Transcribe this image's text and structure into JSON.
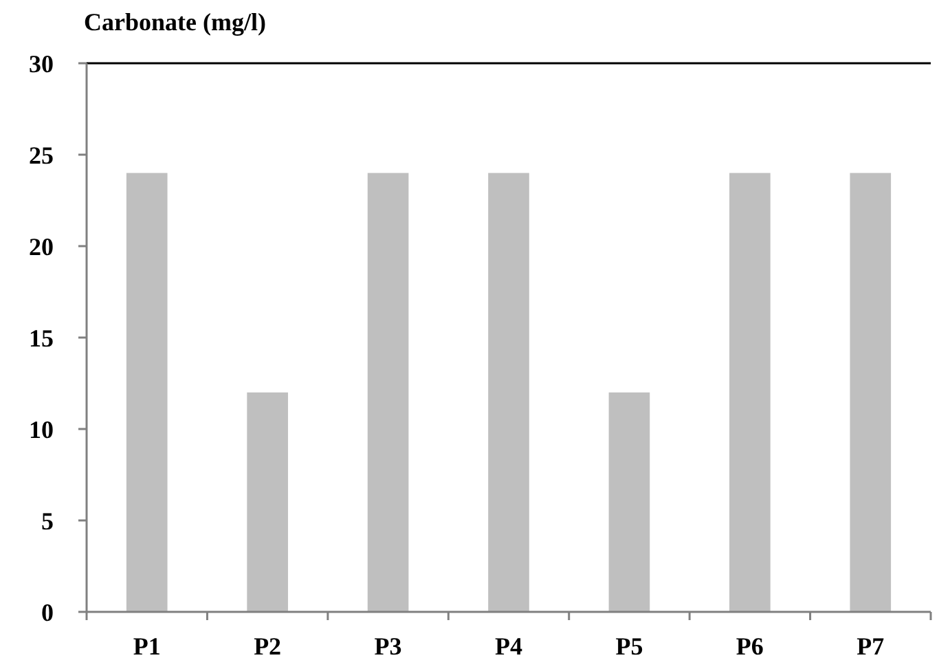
{
  "chart_data": {
    "type": "bar",
    "title": "Carbonate (mg/l)",
    "categories": [
      "P1",
      "P2",
      "P3",
      "P4",
      "P5",
      "P6",
      "P7"
    ],
    "values": [
      24,
      12,
      24,
      24,
      12,
      24,
      24
    ],
    "color": "#bfbfbf",
    "ylim": [
      0,
      30
    ],
    "yticks": [
      0,
      5,
      10,
      15,
      20,
      25,
      30
    ],
    "grid": false
  }
}
